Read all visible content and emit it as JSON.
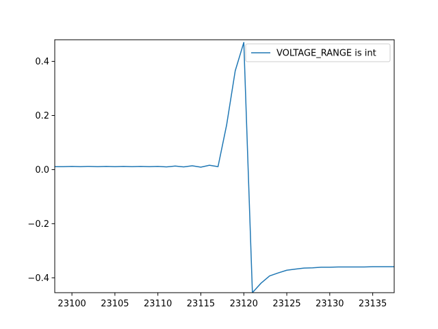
{
  "chart_data": {
    "type": "line",
    "title": "",
    "xlabel": "",
    "ylabel": "",
    "xlim": [
      23098,
      23137.5
    ],
    "ylim": [
      -0.455,
      0.48
    ],
    "grid": false,
    "legend": {
      "placement": "top-right"
    },
    "x_ticks": [
      23100,
      23105,
      23110,
      23115,
      23120,
      23125,
      23130,
      23135
    ],
    "x_tick_labels": [
      "23100",
      "23105",
      "23110",
      "23115",
      "23120",
      "23125",
      "23130",
      "23135"
    ],
    "y_ticks": [
      -0.4,
      -0.2,
      0.0,
      0.2,
      0.4
    ],
    "y_tick_labels": [
      "−0.4",
      "−0.2",
      "0.0",
      "0.2",
      "0.4"
    ],
    "series": [
      {
        "name": "VOLTAGE_RANGE is int",
        "color": "#1f77b4",
        "x": [
          23098,
          23099,
          23100,
          23101,
          23102,
          23103,
          23104,
          23105,
          23106,
          23107,
          23108,
          23109,
          23110,
          23111,
          23112,
          23113,
          23114,
          23115,
          23116,
          23117,
          23118,
          23119,
          23120,
          23121,
          23122,
          23123,
          23124,
          23125,
          23126,
          23127,
          23128,
          23129,
          23130,
          23131,
          23132,
          23133,
          23134,
          23135,
          23136,
          23137,
          23137.5
        ],
        "y": [
          0.011,
          0.011,
          0.012,
          0.011,
          0.012,
          0.011,
          0.012,
          0.011,
          0.012,
          0.011,
          0.012,
          0.011,
          0.012,
          0.01,
          0.013,
          0.01,
          0.014,
          0.009,
          0.016,
          0.011,
          0.165,
          0.365,
          0.47,
          -0.455,
          -0.42,
          -0.393,
          -0.382,
          -0.372,
          -0.368,
          -0.364,
          -0.363,
          -0.361,
          -0.361,
          -0.36,
          -0.36,
          -0.36,
          -0.36,
          -0.359,
          -0.359,
          -0.359,
          -0.359
        ]
      }
    ]
  }
}
